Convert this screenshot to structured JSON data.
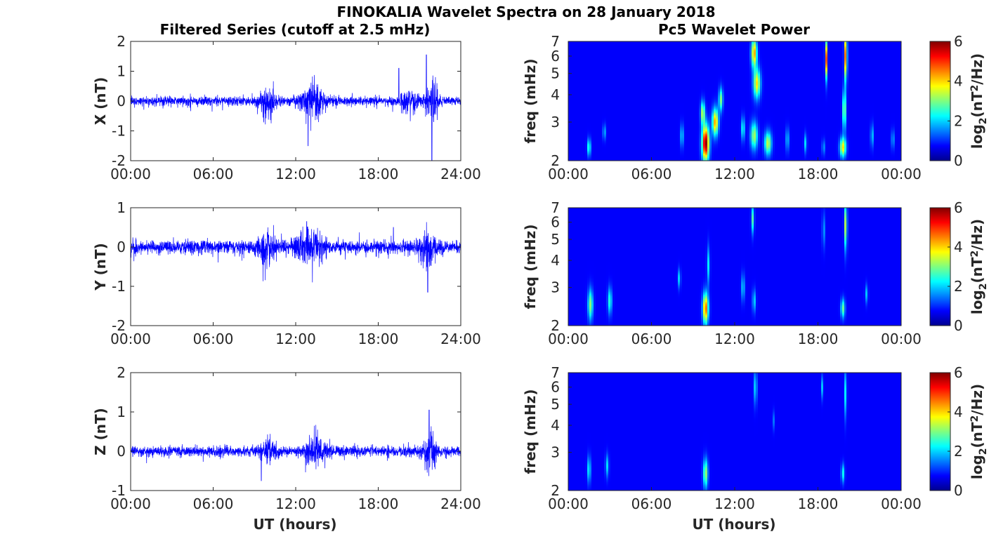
{
  "figure": {
    "title": "FINOKALIA Wavelet Spectra on 28 January 2018",
    "left_title": "Filtered Series (cutoff at 2.5 mHz)",
    "right_title": "Pc5 Wavelet Power",
    "xlabel": "UT (hours)"
  },
  "chart_data": [
    {
      "type": "line",
      "name": "X",
      "ylabel": "X (nT)",
      "xlim": [
        0,
        24
      ],
      "ylim": [
        -2,
        2
      ],
      "xticks": [
        "00:00",
        "06:00",
        "12:00",
        "18:00",
        "24:00"
      ],
      "yticks": [
        "2",
        "1",
        "0",
        "-1",
        "-2"
      ],
      "series_color": "#0000ff",
      "noise_amplitude_nT": 0.12,
      "bursts": [
        {
          "t": 10.0,
          "amp": 0.35,
          "width": 0.6
        },
        {
          "t": 13.2,
          "amp": 0.45,
          "width": 0.8
        },
        {
          "t": 20.2,
          "amp": 0.25,
          "width": 0.6
        },
        {
          "t": 21.9,
          "amp": 0.6,
          "width": 0.4
        }
      ],
      "spikes": [
        {
          "t": 12.9,
          "v": -1.5
        },
        {
          "t": 19.5,
          "v": 1.1
        },
        {
          "t": 21.5,
          "v": 1.55
        },
        {
          "t": 21.9,
          "v": -2.0
        }
      ]
    },
    {
      "type": "line",
      "name": "Y",
      "ylabel": "Y (nT)",
      "xlim": [
        0,
        24
      ],
      "ylim": [
        -2,
        1
      ],
      "xticks": [
        "00:00",
        "06:00",
        "12:00",
        "18:00",
        "24:00"
      ],
      "yticks": [
        "1",
        "0",
        "-1",
        "-2"
      ],
      "series_color": "#0000ff",
      "noise_amplitude_nT": 0.13,
      "bursts": [
        {
          "t": 10.0,
          "amp": 0.25,
          "width": 0.7
        },
        {
          "t": 13.0,
          "amp": 0.3,
          "width": 0.9
        },
        {
          "t": 21.6,
          "amp": 0.3,
          "width": 0.5
        }
      ],
      "spikes": [
        {
          "t": 12.8,
          "v": 0.65
        },
        {
          "t": 21.6,
          "v": -1.15
        },
        {
          "t": 19.1,
          "v": 0.5
        }
      ]
    },
    {
      "type": "line",
      "name": "Z",
      "ylabel": "Z (nT)",
      "xlim": [
        0,
        24
      ],
      "ylim": [
        -1,
        2
      ],
      "xticks": [
        "00:00",
        "06:00",
        "12:00",
        "18:00",
        "24:00"
      ],
      "yticks": [
        "2",
        "1",
        "0",
        "-1"
      ],
      "series_color": "#0000ff",
      "noise_amplitude_nT": 0.1,
      "bursts": [
        {
          "t": 10.0,
          "amp": 0.2,
          "width": 0.6
        },
        {
          "t": 13.5,
          "amp": 0.25,
          "width": 0.8
        },
        {
          "t": 21.8,
          "amp": 0.4,
          "width": 0.4
        }
      ],
      "spikes": [
        {
          "t": 21.7,
          "v": 1.05
        },
        {
          "t": 9.5,
          "v": -0.75
        }
      ]
    },
    {
      "type": "heatmap",
      "name": "X wavelet power",
      "ylabel": "freq (mHz)",
      "xlim": [
        0,
        24
      ],
      "ylim": [
        2,
        7
      ],
      "yscale": "log",
      "xticks": [
        "00:00",
        "06:00",
        "12:00",
        "18:00",
        "00:00"
      ],
      "yticks": [
        "7",
        "6",
        "5",
        "4",
        "3",
        "2"
      ],
      "colorbar_label": "log2(nT2/Hz)",
      "clim": [
        0,
        6
      ],
      "colorbar_ticks": [
        "6",
        "4",
        "2",
        "0"
      ],
      "colormap": "jet",
      "blobs": [
        {
          "t": 1.5,
          "f": 2.3,
          "amp": 2.2,
          "dt": 0.12,
          "df": 0.09
        },
        {
          "t": 2.6,
          "f": 2.7,
          "amp": 1.4,
          "dt": 0.1,
          "df": 0.08
        },
        {
          "t": 8.2,
          "f": 2.6,
          "amp": 1.5,
          "dt": 0.12,
          "df": 0.12
        },
        {
          "t": 9.9,
          "f": 2.4,
          "amp": 6.0,
          "dt": 0.25,
          "df": 0.18
        },
        {
          "t": 9.7,
          "f": 3.3,
          "amp": 3.0,
          "dt": 0.15,
          "df": 0.12
        },
        {
          "t": 10.6,
          "f": 3.0,
          "amp": 4.0,
          "dt": 0.22,
          "df": 0.14
        },
        {
          "t": 11.0,
          "f": 3.8,
          "amp": 2.5,
          "dt": 0.15,
          "df": 0.12
        },
        {
          "t": 12.6,
          "f": 2.8,
          "amp": 2.0,
          "dt": 0.12,
          "df": 0.12
        },
        {
          "t": 13.4,
          "f": 6.2,
          "amp": 4.0,
          "dt": 0.2,
          "df": 0.15
        },
        {
          "t": 13.6,
          "f": 4.5,
          "amp": 3.5,
          "dt": 0.25,
          "df": 0.15
        },
        {
          "t": 13.4,
          "f": 2.6,
          "amp": 2.8,
          "dt": 0.25,
          "df": 0.14
        },
        {
          "t": 14.4,
          "f": 2.4,
          "amp": 3.0,
          "dt": 0.25,
          "df": 0.12
        },
        {
          "t": 15.8,
          "f": 2.5,
          "amp": 1.4,
          "dt": 0.12,
          "df": 0.12
        },
        {
          "t": 17.1,
          "f": 2.4,
          "amp": 1.5,
          "dt": 0.1,
          "df": 0.1
        },
        {
          "t": 18.4,
          "f": 2.3,
          "amp": 1.2,
          "dt": 0.1,
          "df": 0.08
        },
        {
          "t": 18.6,
          "f": 5.8,
          "amp": 4.5,
          "dt": 0.08,
          "df": 0.2
        },
        {
          "t": 19.8,
          "f": 2.3,
          "amp": 3.5,
          "dt": 0.22,
          "df": 0.1
        },
        {
          "t": 19.9,
          "f": 3.4,
          "amp": 3.0,
          "dt": 0.12,
          "df": 0.2
        },
        {
          "t": 20.0,
          "f": 6.0,
          "amp": 4.5,
          "dt": 0.1,
          "df": 0.25
        },
        {
          "t": 21.9,
          "f": 2.6,
          "amp": 1.5,
          "dt": 0.1,
          "df": 0.12
        },
        {
          "t": 23.4,
          "f": 2.5,
          "amp": 1.3,
          "dt": 0.1,
          "df": 0.1
        }
      ]
    },
    {
      "type": "heatmap",
      "name": "Y wavelet power",
      "ylabel": "freq (mHz)",
      "xlim": [
        0,
        24
      ],
      "ylim": [
        2,
        7
      ],
      "yscale": "log",
      "xticks": [
        "00:00",
        "06:00",
        "12:00",
        "18:00",
        "00:00"
      ],
      "yticks": [
        "7",
        "6",
        "5",
        "4",
        "3",
        "2"
      ],
      "colorbar_label": "log2(nT2/Hz)",
      "clim": [
        0,
        6
      ],
      "colorbar_ticks": [
        "6",
        "4",
        "2",
        "0"
      ],
      "colormap": "jet",
      "blobs": [
        {
          "t": 1.6,
          "f": 2.5,
          "amp": 2.6,
          "dt": 0.18,
          "df": 0.16
        },
        {
          "t": 3.0,
          "f": 2.6,
          "amp": 2.0,
          "dt": 0.15,
          "df": 0.14
        },
        {
          "t": 8.0,
          "f": 3.3,
          "amp": 1.5,
          "dt": 0.1,
          "df": 0.1
        },
        {
          "t": 9.9,
          "f": 2.4,
          "amp": 4.5,
          "dt": 0.2,
          "df": 0.16
        },
        {
          "t": 10.1,
          "f": 3.8,
          "amp": 1.6,
          "dt": 0.1,
          "df": 0.2
        },
        {
          "t": 12.6,
          "f": 3.0,
          "amp": 1.5,
          "dt": 0.12,
          "df": 0.14
        },
        {
          "t": 13.3,
          "f": 6.2,
          "amp": 2.2,
          "dt": 0.1,
          "df": 0.15
        },
        {
          "t": 13.4,
          "f": 2.6,
          "amp": 1.5,
          "dt": 0.12,
          "df": 0.12
        },
        {
          "t": 18.4,
          "f": 5.5,
          "amp": 1.5,
          "dt": 0.08,
          "df": 0.18
        },
        {
          "t": 19.8,
          "f": 2.4,
          "amp": 2.4,
          "dt": 0.15,
          "df": 0.1
        },
        {
          "t": 20.0,
          "f": 5.8,
          "amp": 3.0,
          "dt": 0.1,
          "df": 0.25
        },
        {
          "t": 21.5,
          "f": 2.8,
          "amp": 1.3,
          "dt": 0.1,
          "df": 0.1
        }
      ]
    },
    {
      "type": "heatmap",
      "name": "Z wavelet power",
      "ylabel": "freq (mHz)",
      "xlim": [
        0,
        24
      ],
      "ylim": [
        2,
        7
      ],
      "yscale": "log",
      "xticks": [
        "00:00",
        "06:00",
        "12:00",
        "18:00",
        "00:00"
      ],
      "yticks": [
        "7",
        "6",
        "5",
        "4",
        "3",
        "2"
      ],
      "colorbar_label": "log2(nT2/Hz)",
      "clim": [
        0,
        6
      ],
      "colorbar_ticks": [
        "6",
        "4",
        "2",
        "0"
      ],
      "colormap": "jet",
      "blobs": [
        {
          "t": 1.5,
          "f": 2.5,
          "amp": 1.8,
          "dt": 0.12,
          "df": 0.14
        },
        {
          "t": 2.8,
          "f": 2.6,
          "amp": 1.5,
          "dt": 0.12,
          "df": 0.12
        },
        {
          "t": 9.9,
          "f": 2.4,
          "amp": 2.8,
          "dt": 0.17,
          "df": 0.15
        },
        {
          "t": 13.5,
          "f": 6.0,
          "amp": 1.8,
          "dt": 0.1,
          "df": 0.18
        },
        {
          "t": 14.8,
          "f": 4.2,
          "amp": 0.8,
          "dt": 0.08,
          "df": 0.1
        },
        {
          "t": 18.3,
          "f": 6.0,
          "amp": 1.3,
          "dt": 0.07,
          "df": 0.12
        },
        {
          "t": 19.8,
          "f": 2.4,
          "amp": 1.8,
          "dt": 0.12,
          "df": 0.1
        },
        {
          "t": 20.0,
          "f": 5.6,
          "amp": 1.8,
          "dt": 0.08,
          "df": 0.25
        }
      ]
    }
  ]
}
